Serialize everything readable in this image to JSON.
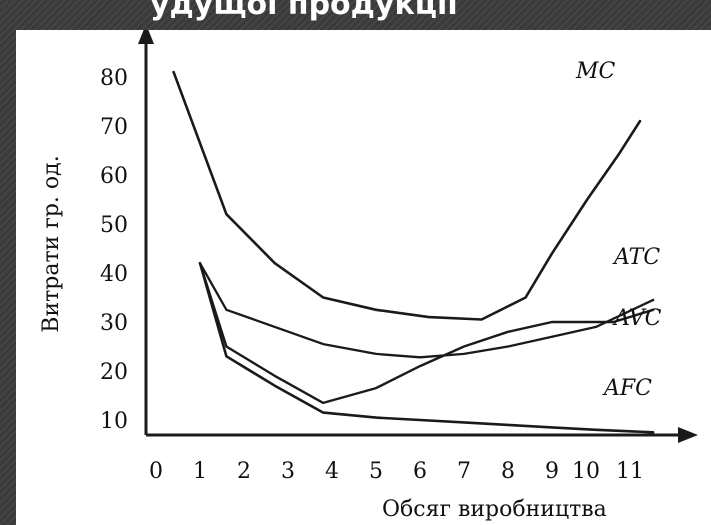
{
  "slide": {
    "caption": "удущої продукції",
    "colors": {
      "background": "#3a3a3a",
      "panel": "#ffffff",
      "ink": "#1a1a1a"
    }
  },
  "chart_data": {
    "type": "line",
    "title": "",
    "xlabel": "Обсяг виробництва",
    "ylabel": "Витрати гр. од.",
    "xlim": [
      0,
      11.6
    ],
    "ylim": [
      0,
      85
    ],
    "x_ticks": [
      "0",
      "1",
      "2",
      "3",
      "4",
      "5",
      "6",
      "7",
      "8",
      "9",
      "10",
      "11"
    ],
    "y_ticks": [
      "10",
      "20",
      "30",
      "40",
      "50",
      "60",
      "70",
      "80"
    ],
    "grid": false,
    "series": [
      {
        "name": "MC",
        "x": [
          0.4,
          1.6,
          2.7,
          3.8,
          5.0,
          6.2,
          7.4,
          8.4,
          9.0,
          9.8,
          10.5,
          11.0
        ],
        "y": [
          81,
          52,
          42,
          35,
          32.5,
          31,
          30.5,
          35,
          44,
          55,
          64,
          71
        ]
      },
      {
        "name": "ATC",
        "x": [
          1.0,
          1.6,
          2.7,
          3.8,
          5.0,
          6.0,
          7.0,
          8.0,
          9.0,
          10.0,
          11.3
        ],
        "y": [
          42,
          32.5,
          29,
          25.5,
          23.5,
          22.8,
          23.5,
          25,
          27,
          29,
          34.5
        ]
      },
      {
        "name": "AVC",
        "x": [
          1.0,
          1.6,
          2.7,
          3.8,
          5.0,
          6.0,
          7.0,
          8.0,
          9.0,
          10.4,
          11.3
        ],
        "y": [
          42,
          25,
          19,
          13.5,
          16.5,
          21,
          25,
          28,
          30,
          30,
          32.5
        ]
      },
      {
        "name": "AFC",
        "x": [
          1.0,
          1.6,
          2.7,
          3.8,
          5.0,
          6.0,
          7.0,
          8.0,
          9.0,
          10.0,
          11.3
        ],
        "y": [
          42,
          23,
          17,
          11.5,
          10.5,
          10,
          9.5,
          9,
          8.5,
          8,
          7.5
        ]
      }
    ]
  }
}
